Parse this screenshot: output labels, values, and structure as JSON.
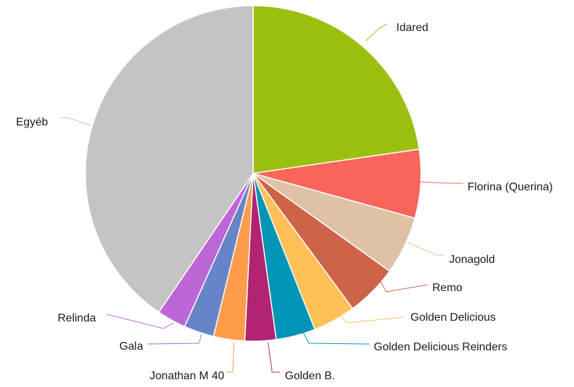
{
  "chart_data": {
    "type": "pie",
    "title": "",
    "start_angle_deg": 0,
    "direction": "clockwise",
    "slices": [
      {
        "label": "Idared",
        "value": 22.7,
        "color": "#9bbf0e"
      },
      {
        "label": "Florina (Querina)",
        "value": 6.6,
        "color": "#f8655a"
      },
      {
        "label": "Jonagold",
        "value": 5.6,
        "color": "#dfc1a5"
      },
      {
        "label": "Remo",
        "value": 5.0,
        "color": "#cd6348"
      },
      {
        "label": "Golden Delicious",
        "value": 4.1,
        "color": "#fec057"
      },
      {
        "label": "Golden Delicious Reinders",
        "value": 3.8,
        "color": "#0094b6"
      },
      {
        "label": "Golden B.",
        "value": 3.0,
        "color": "#b02472"
      },
      {
        "label": "Jonathan M 40",
        "value": 3.0,
        "color": "#ff9c4a"
      },
      {
        "label": "Gala",
        "value": 2.9,
        "color": "#6884c9"
      },
      {
        "label": "Relinda",
        "value": 2.8,
        "color": "#bd66d6"
      },
      {
        "label": "Egyéb",
        "value": 40.5,
        "color": "#c4c4c4"
      }
    ]
  }
}
